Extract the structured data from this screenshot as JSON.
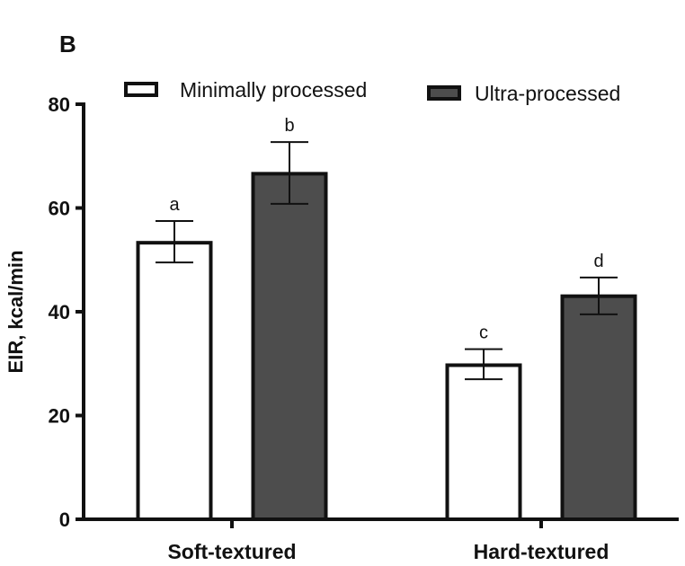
{
  "chart_data": {
    "type": "bar",
    "panel_label": "B",
    "ylabel": "EIR, kcal/min",
    "xlabel": "",
    "ylim": [
      0,
      80
    ],
    "yticks": [
      0,
      20,
      40,
      60,
      80
    ],
    "categories": [
      "Soft-textured",
      "Hard-textured"
    ],
    "legend_position": "top",
    "series": [
      {
        "name": "Minimally processed",
        "color": "#ffffff",
        "values": [
          53.3,
          29.7
        ],
        "err_low": [
          49.5,
          27.0
        ],
        "err_high": [
          57.5,
          32.8
        ],
        "labels": [
          "a",
          "c"
        ]
      },
      {
        "name": "Ultra-processed",
        "color": "#4d4d4d",
        "values": [
          66.6,
          43.0
        ],
        "err_low": [
          60.8,
          39.5
        ],
        "err_high": [
          72.7,
          46.6
        ],
        "labels": [
          "b",
          "d"
        ]
      }
    ]
  }
}
